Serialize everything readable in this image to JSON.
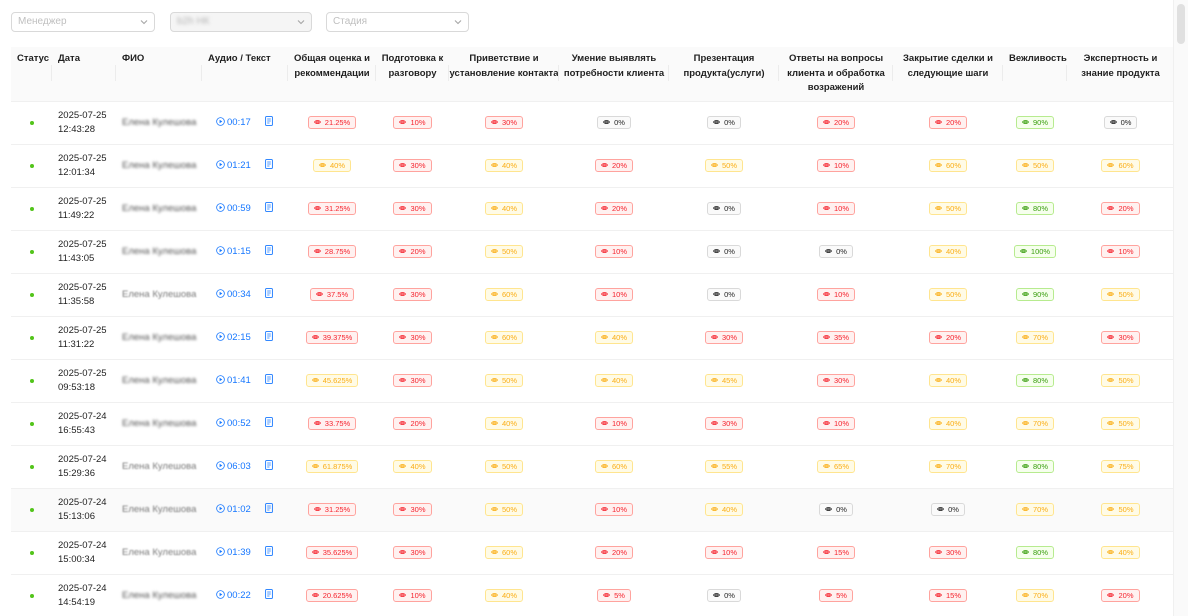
{
  "filters": {
    "manager_placeholder": "Менеджер",
    "project_value": "b2h НК",
    "stage_placeholder": "Стадия"
  },
  "columns": {
    "status": "Статус",
    "date": "Дата",
    "name": "ФИО",
    "audio": "Аудио / Текст",
    "overall": "Общая оценка и рекоммендации",
    "prep": "Подготовка к разговору",
    "greeting": "Приветствие и установление контакта",
    "needs": "Умение выявлять потребности клиента",
    "presentation": "Презентация продукта(услуги)",
    "answers": "Ответы на вопросы клиента и обработка возражений",
    "closing": "Закрытие сделки и следующие шаги",
    "politeness": "Вежливость",
    "expertise": "Экспертность и знание продукта"
  },
  "colors": {
    "red": "#f5222d",
    "orange": "#faad14",
    "green": "#389e0d",
    "gray": "#1f1f1f",
    "status_dot": "#52c41a",
    "link": "#1677ff"
  },
  "rows": [
    {
      "date": "2025-07-25",
      "time": "12:43:28",
      "name": "Елена Кулешова",
      "duration": "00:17",
      "scores": [
        [
          "21.25%",
          "red"
        ],
        [
          "10%",
          "red"
        ],
        [
          "30%",
          "red"
        ],
        [
          "0%",
          "gray"
        ],
        [
          "0%",
          "gray"
        ],
        [
          "20%",
          "red"
        ],
        [
          "20%",
          "red"
        ],
        [
          "90%",
          "green"
        ],
        [
          "0%",
          "gray"
        ]
      ]
    },
    {
      "date": "2025-07-25",
      "time": "12:01:34",
      "name": "Елена Кулешова",
      "duration": "01:21",
      "scores": [
        [
          "40%",
          "orange"
        ],
        [
          "30%",
          "red"
        ],
        [
          "40%",
          "orange"
        ],
        [
          "20%",
          "red"
        ],
        [
          "50%",
          "orange"
        ],
        [
          "10%",
          "red"
        ],
        [
          "60%",
          "orange"
        ],
        [
          "50%",
          "orange"
        ],
        [
          "60%",
          "orange"
        ]
      ]
    },
    {
      "date": "2025-07-25",
      "time": "11:49:22",
      "name": "Елена Кулешова",
      "duration": "00:59",
      "scores": [
        [
          "31.25%",
          "red"
        ],
        [
          "30%",
          "red"
        ],
        [
          "40%",
          "orange"
        ],
        [
          "20%",
          "red"
        ],
        [
          "0%",
          "gray"
        ],
        [
          "10%",
          "red"
        ],
        [
          "50%",
          "orange"
        ],
        [
          "80%",
          "green"
        ],
        [
          "20%",
          "red"
        ]
      ]
    },
    {
      "date": "2025-07-25",
      "time": "11:43:05",
      "name": "Елена Кулешова",
      "duration": "01:15",
      "scores": [
        [
          "28.75%",
          "red"
        ],
        [
          "20%",
          "red"
        ],
        [
          "50%",
          "orange"
        ],
        [
          "10%",
          "red"
        ],
        [
          "0%",
          "gray"
        ],
        [
          "0%",
          "gray"
        ],
        [
          "40%",
          "orange"
        ],
        [
          "100%",
          "green"
        ],
        [
          "10%",
          "red"
        ]
      ]
    },
    {
      "date": "2025-07-25",
      "time": "11:35:58",
      "name": "Елена Кулешова",
      "duration": "00:34",
      "scores": [
        [
          "37.5%",
          "red"
        ],
        [
          "30%",
          "red"
        ],
        [
          "60%",
          "orange"
        ],
        [
          "10%",
          "red"
        ],
        [
          "0%",
          "gray"
        ],
        [
          "10%",
          "red"
        ],
        [
          "50%",
          "orange"
        ],
        [
          "90%",
          "green"
        ],
        [
          "50%",
          "orange"
        ]
      ]
    },
    {
      "date": "2025-07-25",
      "time": "11:31:22",
      "name": "Елена Кулешова",
      "duration": "02:15",
      "scores": [
        [
          "39.375%",
          "red"
        ],
        [
          "30%",
          "red"
        ],
        [
          "60%",
          "orange"
        ],
        [
          "40%",
          "orange"
        ],
        [
          "30%",
          "red"
        ],
        [
          "35%",
          "red"
        ],
        [
          "20%",
          "red"
        ],
        [
          "70%",
          "orange"
        ],
        [
          "30%",
          "red"
        ]
      ]
    },
    {
      "date": "2025-07-25",
      "time": "09:53:18",
      "name": "Елена Кулешова",
      "duration": "01:41",
      "scores": [
        [
          "45.625%",
          "orange"
        ],
        [
          "30%",
          "red"
        ],
        [
          "50%",
          "orange"
        ],
        [
          "40%",
          "orange"
        ],
        [
          "45%",
          "orange"
        ],
        [
          "30%",
          "red"
        ],
        [
          "40%",
          "orange"
        ],
        [
          "80%",
          "green"
        ],
        [
          "50%",
          "orange"
        ]
      ]
    },
    {
      "date": "2025-07-24",
      "time": "16:55:43",
      "name": "Елена Кулешова",
      "duration": "00:52",
      "scores": [
        [
          "33.75%",
          "red"
        ],
        [
          "20%",
          "red"
        ],
        [
          "40%",
          "orange"
        ],
        [
          "10%",
          "red"
        ],
        [
          "30%",
          "red"
        ],
        [
          "10%",
          "red"
        ],
        [
          "40%",
          "orange"
        ],
        [
          "70%",
          "orange"
        ],
        [
          "50%",
          "orange"
        ]
      ]
    },
    {
      "date": "2025-07-24",
      "time": "15:29:36",
      "name": "Елена Кулешова",
      "duration": "06:03",
      "scores": [
        [
          "61.875%",
          "orange"
        ],
        [
          "40%",
          "orange"
        ],
        [
          "50%",
          "orange"
        ],
        [
          "60%",
          "orange"
        ],
        [
          "55%",
          "orange"
        ],
        [
          "65%",
          "orange"
        ],
        [
          "70%",
          "orange"
        ],
        [
          "80%",
          "green"
        ],
        [
          "75%",
          "orange"
        ]
      ]
    },
    {
      "date": "2025-07-24",
      "time": "15:13:06",
      "name": "Елена Кулешова",
      "duration": "01:02",
      "scores": [
        [
          "31.25%",
          "red"
        ],
        [
          "30%",
          "red"
        ],
        [
          "50%",
          "orange"
        ],
        [
          "10%",
          "red"
        ],
        [
          "40%",
          "orange"
        ],
        [
          "0%",
          "gray"
        ],
        [
          "0%",
          "gray"
        ],
        [
          "70%",
          "orange"
        ],
        [
          "50%",
          "orange"
        ]
      ]
    },
    {
      "date": "2025-07-24",
      "time": "15:00:34",
      "name": "Елена Кулешова",
      "duration": "01:39",
      "scores": [
        [
          "35.625%",
          "red"
        ],
        [
          "30%",
          "red"
        ],
        [
          "60%",
          "orange"
        ],
        [
          "20%",
          "red"
        ],
        [
          "10%",
          "red"
        ],
        [
          "15%",
          "red"
        ],
        [
          "30%",
          "red"
        ],
        [
          "80%",
          "green"
        ],
        [
          "40%",
          "orange"
        ]
      ]
    },
    {
      "date": "2025-07-24",
      "time": "14:54:19",
      "name": "Елена Кулешова",
      "duration": "00:22",
      "scores": [
        [
          "20.625%",
          "red"
        ],
        [
          "10%",
          "red"
        ],
        [
          "40%",
          "orange"
        ],
        [
          "5%",
          "red"
        ],
        [
          "0%",
          "gray"
        ],
        [
          "5%",
          "red"
        ],
        [
          "15%",
          "red"
        ],
        [
          "70%",
          "orange"
        ],
        [
          "20%",
          "red"
        ]
      ]
    }
  ]
}
